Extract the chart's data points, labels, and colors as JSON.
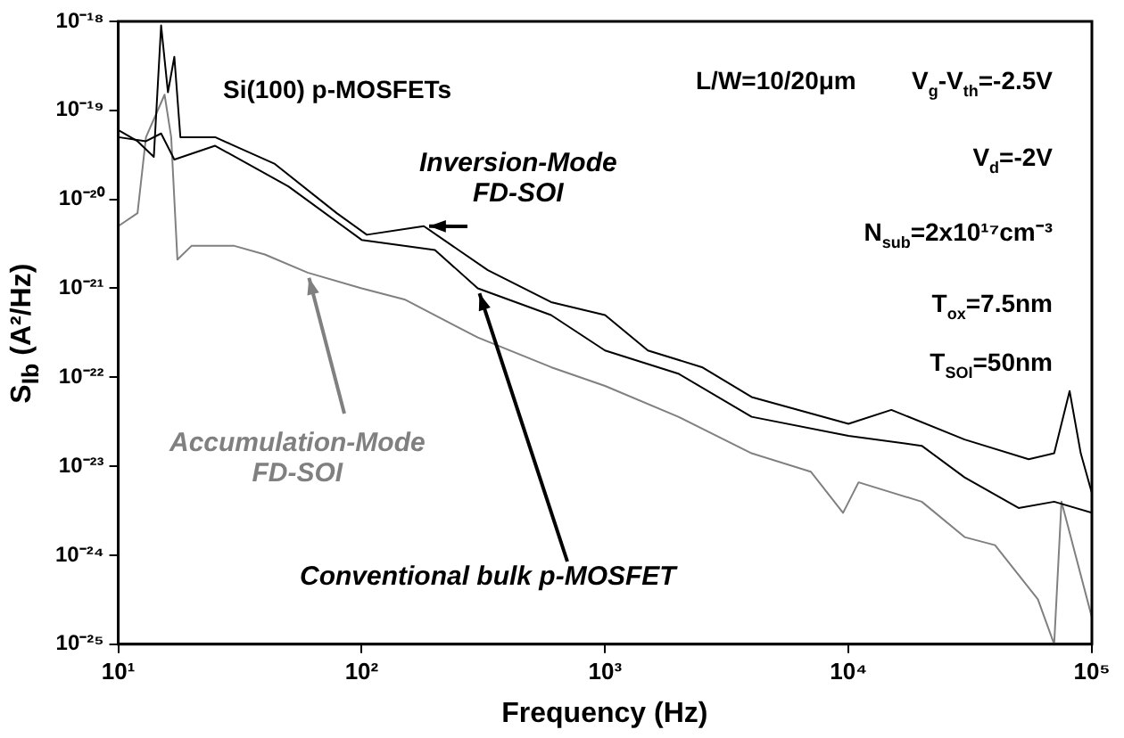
{
  "chart_data": {
    "type": "line",
    "xlabel": "Frequency (Hz)",
    "ylabel": "S$_{Ib}$ (A²/Hz)",
    "log": "xy",
    "grid": false,
    "legend": false,
    "marker": "none",
    "line_style": "solid",
    "xlim": [
      10,
      100000
    ],
    "ylim": [
      1e-25,
      1e-18
    ],
    "xticks": [
      {
        "value": 10,
        "label": "10¹"
      },
      {
        "value": 100,
        "label": "10²"
      },
      {
        "value": 1000,
        "label": "10³"
      },
      {
        "value": 10000,
        "label": "10⁴"
      },
      {
        "value": 100000,
        "label": "10⁵"
      }
    ],
    "yticks": [
      {
        "value": 1e-25,
        "label": "10⁻²⁵"
      },
      {
        "value": 1e-24,
        "label": "10⁻²⁴"
      },
      {
        "value": 1e-23,
        "label": "10⁻²³"
      },
      {
        "value": 1e-22,
        "label": "10⁻²²"
      },
      {
        "value": 1e-21,
        "label": "10⁻²¹"
      },
      {
        "value": 1e-20,
        "label": "10⁻²⁰"
      },
      {
        "value": 1e-19,
        "label": "10⁻¹⁹"
      },
      {
        "value": 1e-18,
        "label": "10⁻¹⁸"
      }
    ],
    "series": [
      {
        "name": "Inversion-Mode\nFD-SOI",
        "color": "#000000",
        "x": [
          10,
          12,
          14,
          15,
          16,
          17,
          18,
          25,
          30,
          44,
          79,
          105,
          180,
          330,
          600,
          1000,
          1500,
          2500,
          4000,
          10000,
          15000,
          30000,
          55000,
          70000,
          81000,
          90000,
          100000
        ],
        "values": [
          6e-20,
          4.5e-20,
          3e-20,
          9e-19,
          1.6e-19,
          4e-19,
          5e-20,
          5e-20,
          4e-20,
          2.5e-20,
          7e-21,
          4e-21,
          5e-21,
          1.6e-21,
          7e-22,
          5e-22,
          2e-22,
          1.3e-22,
          6e-23,
          3e-23,
          4.3e-23,
          2e-23,
          1.2e-23,
          1.4e-23,
          7e-23,
          1.4e-23,
          5e-24
        ]
      },
      {
        "name": "Conventional bulk p-MOSFET",
        "color": "#000000",
        "x": [
          10,
          13,
          15,
          17,
          25,
          50,
          100,
          200,
          300,
          600,
          1000,
          2000,
          4000,
          10000,
          20000,
          30000,
          50000,
          70000,
          100000
        ],
        "values": [
          5e-20,
          4.5e-20,
          5.5e-20,
          2.8e-20,
          4e-20,
          1.4e-20,
          3.5e-21,
          2.7e-21,
          1e-21,
          5e-22,
          2e-22,
          1.1e-22,
          3.6e-23,
          2.2e-23,
          1.7e-23,
          7.5e-24,
          3.4e-24,
          4e-24,
          3e-24
        ]
      },
      {
        "name": "Accumulation-Mode\nFD-SOI",
        "color": "#808080",
        "x": [
          10,
          12,
          13,
          15.5,
          16.5,
          17.5,
          20,
          30,
          40,
          60,
          100,
          150,
          300,
          600,
          1000,
          2000,
          4000,
          7000,
          9500,
          11000,
          20000,
          30000,
          40000,
          60000,
          70000,
          75000,
          100000
        ],
        "values": [
          5e-21,
          7e-21,
          5e-20,
          1.5e-19,
          5e-20,
          2.1e-21,
          3e-21,
          3e-21,
          2.4e-21,
          1.5e-21,
          1e-21,
          7.5e-22,
          2.8e-22,
          1.3e-22,
          8e-23,
          3.6e-23,
          1.4e-23,
          8.7e-24,
          3e-24,
          6.6e-24,
          4e-24,
          1.6e-24,
          1.3e-24,
          3.2e-25,
          1e-25,
          4e-24,
          2e-25
        ]
      }
    ],
    "annotations": [
      "Si(100) p-MOSFETs",
      "L/W=10/20μm",
      "V$_{g}$-V$_{th}$=-2.5V",
      "V$_{d}$=-2V",
      "N$_{sub}$=2x10¹⁷cm⁻³",
      "T$_{ox}$=7.5nm",
      "T$_{SOI}$=50nm"
    ]
  }
}
